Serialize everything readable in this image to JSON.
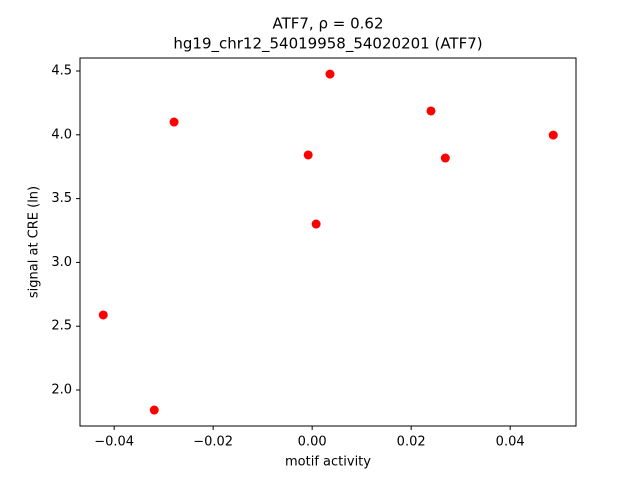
{
  "chart_data": {
    "type": "scatter",
    "title": "ATF7, ρ = 0.62",
    "subtitle": "hg19_chr12_54019958_54020201 (ATF7)",
    "x_label": "motif activity",
    "y_label": "signal at CRE (ln)",
    "color": "#ff0000",
    "x": [
      -0.0422,
      -0.0319,
      -0.0279,
      -0.0008,
      0.0008,
      0.0036,
      0.024,
      0.0269,
      0.0487
    ],
    "values": [
      2.588,
      1.843,
      4.1,
      3.842,
      3.301,
      4.476,
      4.187,
      3.818,
      3.998
    ],
    "xlim": [
      -0.0469,
      0.0533
    ],
    "ylim": [
      1.718,
      4.602
    ],
    "xticks": [
      {
        "value": -0.04,
        "label": "−0.04"
      },
      {
        "value": -0.02,
        "label": "−0.02"
      },
      {
        "value": 0,
        "label": "0.00"
      },
      0.02,
      0.04
    ],
    "yticks": [
      {
        "value": 2,
        "label": "2.0"
      },
      2.5,
      {
        "value": 3,
        "label": "3.0"
      },
      3.5,
      {
        "value": 4,
        "label": "4.0"
      },
      4.5
    ]
  }
}
